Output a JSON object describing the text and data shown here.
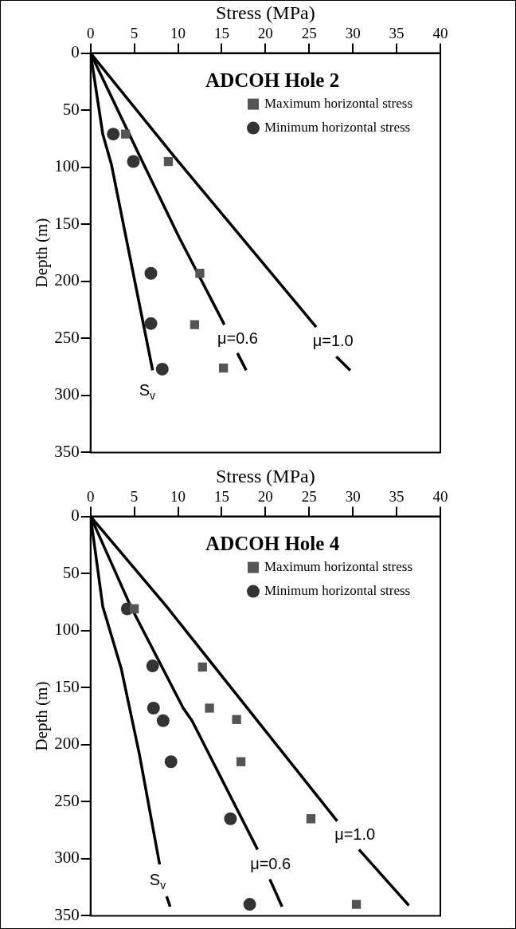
{
  "chart_data": [
    {
      "type": "scatter",
      "title": "ADCOH Hole 2",
      "xlabel": "Stress (MPa)",
      "ylabel": "Depth (m)",
      "xlim": [
        0,
        40
      ],
      "xticks": [
        0,
        5,
        10,
        15,
        20,
        25,
        30,
        35,
        40
      ],
      "ylim": [
        350,
        0
      ],
      "yticks": [
        0,
        50,
        100,
        150,
        200,
        250,
        300,
        350
      ],
      "grid": false,
      "legend": "top right",
      "series": [
        {
          "name": "S$_{v}$",
          "type": "line",
          "color": "#000000",
          "marker": "none",
          "x": [
            0,
            1.4,
            2.4,
            7.1
          ],
          "values": [
            0,
            71,
            98,
            278
          ]
        },
        {
          "name": "μ=0.6",
          "type": "line",
          "color": "#000000",
          "marker": "none",
          "x": [
            0,
            5.8,
            10.1,
            15.3,
            16,
            16.8,
            17.8
          ],
          "values": [
            0,
            93,
            161,
            238,
            null,
            263,
            278
          ]
        },
        {
          "name": "μ=1.0",
          "type": "line",
          "color": "#000000",
          "marker": "none",
          "x": [
            0,
            9.5,
            25.8,
            27,
            28.1,
            29.7
          ],
          "values": [
            0,
            90,
            240,
            null,
            266,
            278
          ]
        },
        {
          "name": "Maximum horizontal stress",
          "type": "scatter",
          "color": "#555555",
          "marker": "square",
          "x": [
            4.0,
            8.9,
            12.5,
            11.9,
            15.2
          ],
          "values": [
            71,
            95,
            193,
            238,
            276
          ]
        },
        {
          "name": "Minimum horizontal stress",
          "type": "scatter",
          "color": "#333333",
          "marker": "circle",
          "x": [
            2.6,
            4.9,
            6.9,
            6.9,
            8.2
          ],
          "values": [
            71,
            95,
            193,
            237,
            277
          ]
        }
      ],
      "data_labels": false
    },
    {
      "type": "scatter",
      "title": "ADCOH Hole 4",
      "xlabel": "Stress (MPa)",
      "ylabel": "Depth (m)",
      "xlim": [
        0,
        40
      ],
      "xticks": [
        0,
        5,
        10,
        15,
        20,
        25,
        30,
        35,
        40
      ],
      "ylim": [
        350,
        0
      ],
      "yticks": [
        0,
        50,
        100,
        150,
        200,
        250,
        300,
        350
      ],
      "grid": false,
      "legend": "top right",
      "series": [
        {
          "name": "S$_{v}$",
          "type": "line",
          "color": "#000000",
          "marker": "none",
          "x": [
            0,
            1.4,
            3.5,
            5.6,
            7.9,
            8.3,
            8.7,
            9.1
          ],
          "values": [
            0,
            79,
            133,
            209,
            305,
            null,
            333,
            342
          ]
        },
        {
          "name": "μ=0.6",
          "type": "line",
          "color": "#000000",
          "marker": "none",
          "x": [
            0,
            4.6,
            10.6,
            11.6,
            19.1,
            19.8,
            20.5,
            21.9
          ],
          "values": [
            0,
            79,
            168,
            179,
            292,
            null,
            318,
            342
          ]
        },
        {
          "name": "μ=1.0",
          "type": "line",
          "color": "#000000",
          "marker": "none",
          "x": [
            0,
            8.7,
            28.2,
            29.5,
            30.7,
            36.4
          ],
          "values": [
            0,
            79,
            267,
            null,
            292,
            341
          ]
        },
        {
          "name": "Maximum horizontal stress",
          "type": "scatter",
          "color": "#555555",
          "marker": "square",
          "x": [
            5.0,
            12.8,
            13.6,
            16.7,
            17.2,
            25.2,
            30.4
          ],
          "values": [
            81,
            132,
            168,
            178,
            215,
            265,
            340
          ]
        },
        {
          "name": "Minimum horizontal stress",
          "type": "scatter",
          "color": "#333333",
          "marker": "circle",
          "x": [
            4.2,
            7.1,
            7.2,
            8.3,
            9.2,
            16.0,
            18.2
          ],
          "values": [
            81,
            131,
            168,
            179,
            215,
            265,
            340
          ]
        }
      ],
      "data_labels": false
    }
  ]
}
